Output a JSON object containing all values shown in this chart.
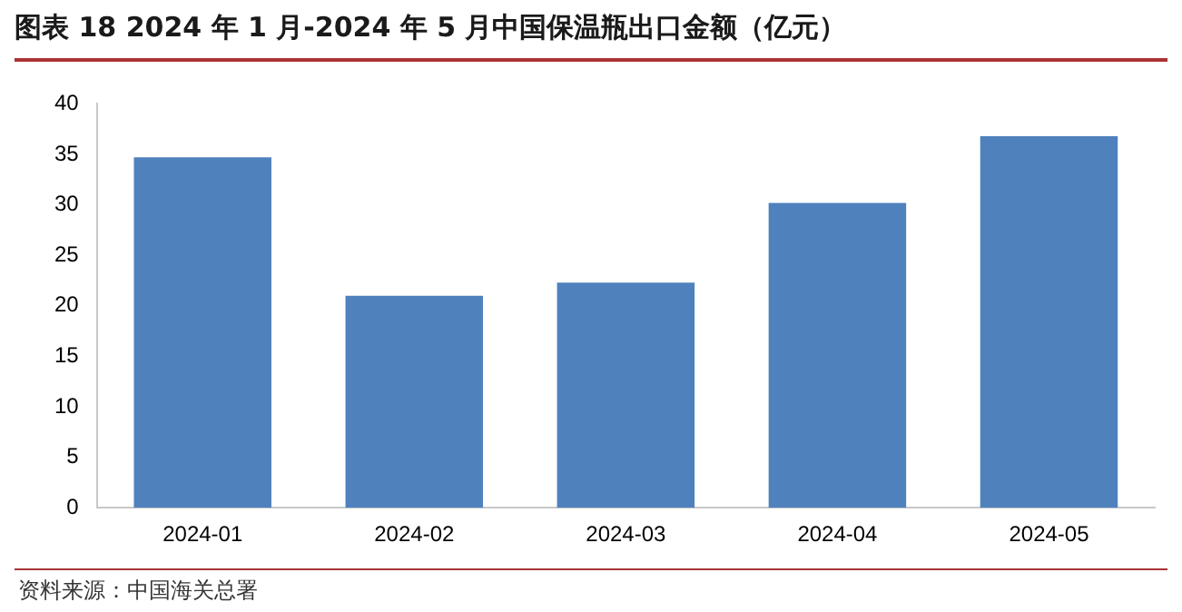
{
  "chart_data": {
    "type": "bar",
    "title": "图表 18 2024 年 1 月-2024 年 5 月中国保温瓶出口金额（亿元）",
    "categories": [
      "2024-01",
      "2024-02",
      "2024-03",
      "2024-04",
      "2024-05"
    ],
    "values": [
      34.7,
      21.0,
      22.3,
      30.2,
      36.8
    ],
    "color": "#4f81bd",
    "ylim": [
      0,
      40
    ],
    "yticks": [
      0,
      5,
      10,
      15,
      20,
      25,
      30,
      35,
      40
    ],
    "grid": false,
    "legend": false,
    "annotations": [
      "资料来源：中国海关总署"
    ]
  }
}
